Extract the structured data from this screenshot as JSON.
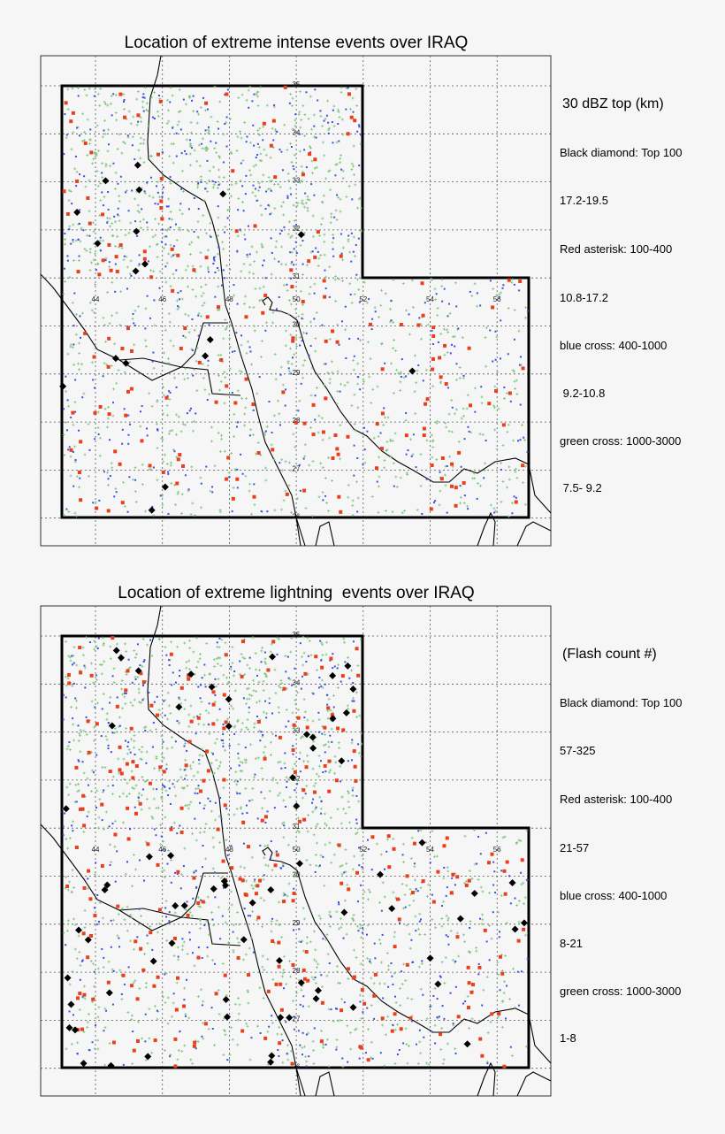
{
  "marker_colors": {
    "diamond": "#000000",
    "asterisk": "#e8401c",
    "blue_cross": "#3a4fe0",
    "green_cross": "#7cc47c"
  },
  "lon_ticks": [
    "44",
    "46",
    "48",
    "50",
    "52",
    "54",
    "56"
  ],
  "lat_ticks": [
    "35",
    "34",
    "33",
    "32",
    "31",
    "30",
    "29",
    "28",
    "27",
    "26"
  ],
  "maps": [
    {
      "title": "Location of extreme intense events over IRAQ",
      "legend_heading": "30 dBZ top (km)",
      "legend": [
        "Black diamond: Top 100",
        "17.2-19.5",
        "Red asterisk: 100-400",
        "10.8-17.2",
        "blue cross: 400-1000",
        " 9.2-10.8",
        "green cross: 1000-3000",
        " 7.5- 9.2"
      ]
    },
    {
      "title": "Location of extreme lightning  events over IRAQ",
      "legend_heading": "(Flash count #)",
      "legend": [
        "Black diamond: Top 100",
        "57-325",
        "Red asterisk: 100-400",
        "21-57",
        "blue cross: 400-1000",
        "8-21",
        "green cross: 1000-3000",
        "1-8"
      ]
    }
  ]
}
